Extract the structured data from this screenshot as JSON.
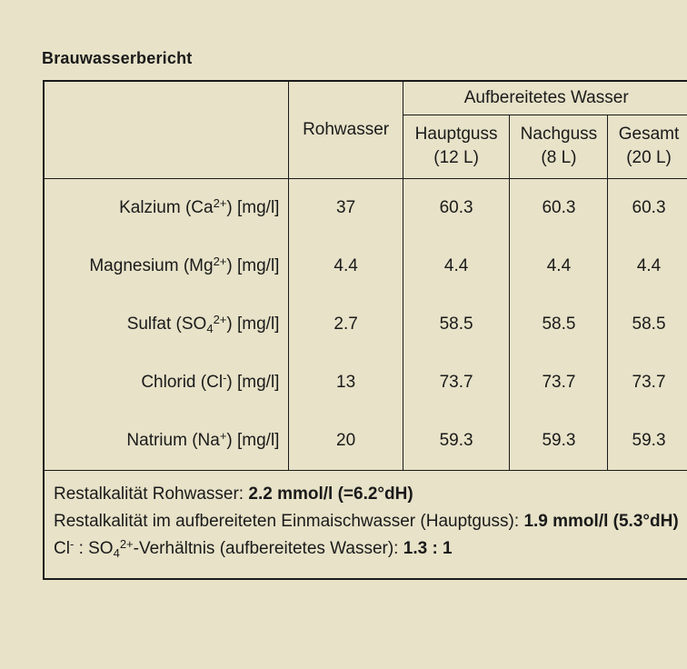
{
  "page": {
    "title": "Brauwasserbericht"
  },
  "colors": {
    "background": "#e7e2c8",
    "border": "#1a1a1a",
    "text": "#1a1a1a"
  },
  "table": {
    "header": {
      "corner": "",
      "rohwasser": "Rohwasser",
      "aufbereitetes": "Aufbereitetes Wasser",
      "sub_columns": [
        {
          "name": "Hauptguss",
          "volume": "(12 L)"
        },
        {
          "name": "Nachguss",
          "volume": "(8 L)"
        },
        {
          "name": "Gesamt",
          "volume": "(20 L)"
        }
      ]
    },
    "rows": [
      {
        "id": "kalzium",
        "label_parts": [
          {
            "t": "Kalzium (Ca"
          },
          {
            "t": "2+",
            "sup": true
          },
          {
            "t": ") [mg/l]"
          }
        ],
        "values": [
          "37",
          "60.3",
          "60.3",
          "60.3"
        ]
      },
      {
        "id": "magnesium",
        "label_parts": [
          {
            "t": "Magnesium (Mg"
          },
          {
            "t": "2+",
            "sup": true
          },
          {
            "t": ") [mg/l]"
          }
        ],
        "values": [
          "4.4",
          "4.4",
          "4.4",
          "4.4"
        ]
      },
      {
        "id": "sulfat",
        "label_parts": [
          {
            "t": "Sulfat (SO"
          },
          {
            "t": "4",
            "sub": true
          },
          {
            "t": "2+",
            "sup": true
          },
          {
            "t": ") [mg/l]"
          }
        ],
        "values": [
          "2.7",
          "58.5",
          "58.5",
          "58.5"
        ]
      },
      {
        "id": "chlorid",
        "label_parts": [
          {
            "t": "Chlorid (Cl"
          },
          {
            "t": "-",
            "sup": true
          },
          {
            "t": ") [mg/l]"
          }
        ],
        "values": [
          "13",
          "73.7",
          "73.7",
          "73.7"
        ]
      },
      {
        "id": "natrium",
        "label_parts": [
          {
            "t": "Natrium (Na"
          },
          {
            "t": "+",
            "sup": true
          },
          {
            "t": ") [mg/l]"
          }
        ],
        "values": [
          "20",
          "59.3",
          "59.3",
          "59.3"
        ]
      }
    ],
    "footer_lines": [
      {
        "id": "restalkalitaet-rohwasser",
        "parts": [
          {
            "t": "Restalkalität Rohwasser: "
          },
          {
            "t": "2.2 mmol/l (=6.2°dH)",
            "b": true
          }
        ]
      },
      {
        "id": "restalkalitaet-einmaischwasser",
        "parts": [
          {
            "t": "Restalkalität im aufbereiteten Einmaischwasser (Hauptguss): "
          },
          {
            "t": "1.9 mmol/l (5.3°dH)",
            "b": true
          }
        ]
      },
      {
        "id": "cl-so4-verhaeltnis",
        "parts": [
          {
            "t": "Cl"
          },
          {
            "t": "-",
            "sup": true
          },
          {
            "t": " : SO"
          },
          {
            "t": "4",
            "sub": true
          },
          {
            "t": "2+",
            "sup": true
          },
          {
            "t": "-Verhältnis (aufbereitetes Wasser): "
          },
          {
            "t": "1.3 : 1",
            "b": true
          }
        ]
      }
    ]
  }
}
